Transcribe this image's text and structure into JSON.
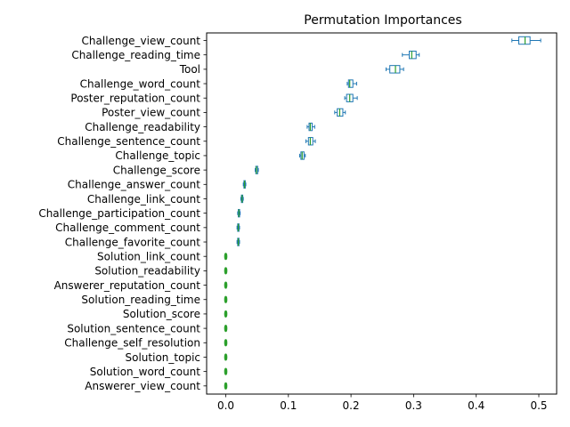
{
  "chart_data": {
    "type": "boxplot",
    "orientation": "horizontal",
    "title": "Permutation Importances",
    "xlabel": "",
    "ylabel": "",
    "xlim": [
      -0.027,
      0.527
    ],
    "xticks": [
      0.0,
      0.1,
      0.2,
      0.3,
      0.4,
      0.5
    ],
    "xtick_labels": [
      "0.0",
      "0.1",
      "0.2",
      "0.3",
      "0.4",
      "0.5"
    ],
    "grid": false,
    "legend": "none",
    "colors": {
      "box": "#1f77b4",
      "median": "#2ca02c",
      "axis": "#000000"
    },
    "features": [
      {
        "name": "Challenge_view_count",
        "min": 0.457,
        "q1": 0.468,
        "median": 0.478,
        "q3": 0.486,
        "max": 0.503
      },
      {
        "name": "Challenge_reading_time",
        "min": 0.282,
        "q1": 0.293,
        "median": 0.297,
        "q3": 0.304,
        "max": 0.309
      },
      {
        "name": "Tool",
        "min": 0.256,
        "q1": 0.262,
        "median": 0.271,
        "q3": 0.278,
        "max": 0.284
      },
      {
        "name": "Challenge_word_count",
        "min": 0.194,
        "q1": 0.196,
        "median": 0.198,
        "q3": 0.203,
        "max": 0.209
      },
      {
        "name": "Poster_reputation_count",
        "min": 0.19,
        "q1": 0.193,
        "median": 0.198,
        "q3": 0.203,
        "max": 0.21
      },
      {
        "name": "Poster_view_count",
        "min": 0.174,
        "q1": 0.178,
        "median": 0.182,
        "q3": 0.187,
        "max": 0.191
      },
      {
        "name": "Challenge_readability",
        "min": 0.13,
        "q1": 0.133,
        "median": 0.135,
        "q3": 0.138,
        "max": 0.142
      },
      {
        "name": "Challenge_sentence_count",
        "min": 0.128,
        "q1": 0.132,
        "median": 0.135,
        "q3": 0.139,
        "max": 0.143
      },
      {
        "name": "Challenge_topic",
        "min": 0.118,
        "q1": 0.12,
        "median": 0.122,
        "q3": 0.125,
        "max": 0.127
      },
      {
        "name": "Challenge_score",
        "min": 0.047,
        "q1": 0.048,
        "median": 0.049,
        "q3": 0.051,
        "max": 0.052
      },
      {
        "name": "Challenge_answer_count",
        "min": 0.028,
        "q1": 0.029,
        "median": 0.03,
        "q3": 0.031,
        "max": 0.032
      },
      {
        "name": "Challenge_link_count",
        "min": 0.024,
        "q1": 0.025,
        "median": 0.026,
        "q3": 0.027,
        "max": 0.028
      },
      {
        "name": "Challenge_participation_count",
        "min": 0.019,
        "q1": 0.02,
        "median": 0.021,
        "q3": 0.022,
        "max": 0.023
      },
      {
        "name": "Challenge_comment_count",
        "min": 0.018,
        "q1": 0.019,
        "median": 0.02,
        "q3": 0.021,
        "max": 0.022
      },
      {
        "name": "Challenge_favorite_count",
        "min": 0.018,
        "q1": 0.019,
        "median": 0.02,
        "q3": 0.021,
        "max": 0.022
      },
      {
        "name": "Solution_link_count",
        "min": 0.0,
        "q1": 0.0,
        "median": 0.0,
        "q3": 0.0,
        "max": 0.0
      },
      {
        "name": "Solution_readability",
        "min": 0.0,
        "q1": 0.0,
        "median": 0.0,
        "q3": 0.0,
        "max": 0.0
      },
      {
        "name": "Answerer_reputation_count",
        "min": 0.0,
        "q1": 0.0,
        "median": 0.0,
        "q3": 0.0,
        "max": 0.0
      },
      {
        "name": "Solution_reading_time",
        "min": 0.0,
        "q1": 0.0,
        "median": 0.0,
        "q3": 0.0,
        "max": 0.0
      },
      {
        "name": "Solution_score",
        "min": 0.0,
        "q1": 0.0,
        "median": 0.0,
        "q3": 0.0,
        "max": 0.0
      },
      {
        "name": "Solution_sentence_count",
        "min": 0.0,
        "q1": 0.0,
        "median": 0.0,
        "q3": 0.0,
        "max": 0.0
      },
      {
        "name": "Challenge_self_resolution",
        "min": 0.0,
        "q1": 0.0,
        "median": 0.0,
        "q3": 0.0,
        "max": 0.0
      },
      {
        "name": "Solution_topic",
        "min": 0.0,
        "q1": 0.0,
        "median": 0.0,
        "q3": 0.0,
        "max": 0.0
      },
      {
        "name": "Solution_word_count",
        "min": 0.0,
        "q1": 0.0,
        "median": 0.0,
        "q3": 0.0,
        "max": 0.0
      },
      {
        "name": "Answerer_view_count",
        "min": 0.0,
        "q1": 0.0,
        "median": 0.0,
        "q3": 0.0,
        "max": 0.0
      }
    ]
  }
}
